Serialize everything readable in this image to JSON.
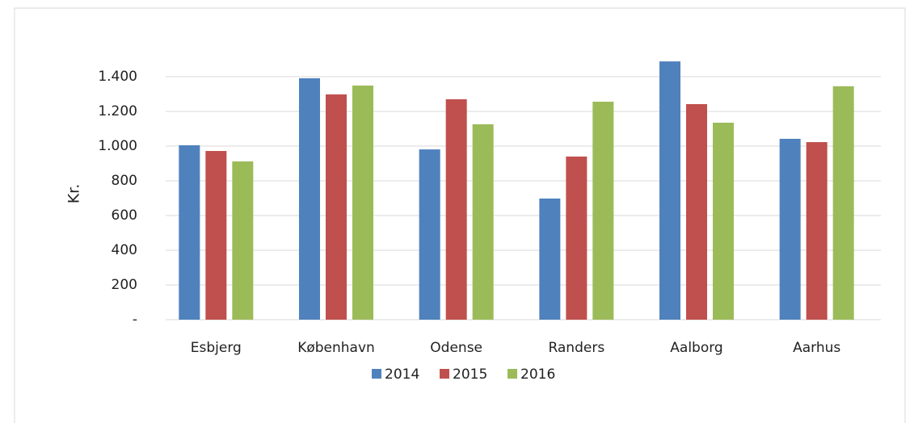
{
  "chart_data": {
    "type": "bar",
    "ylabel": "Kr.",
    "categories": [
      "Esbjerg",
      "København",
      "Odense",
      "Randers",
      "Aalborg",
      "Aarhus"
    ],
    "series": [
      {
        "name": "2014",
        "color": "#4f81bd",
        "values": [
          1005,
          1391,
          981,
          698,
          1488,
          1042
        ]
      },
      {
        "name": "2015",
        "color": "#c0504d",
        "values": [
          972,
          1298,
          1270,
          940,
          1242,
          1023
        ]
      },
      {
        "name": "2016",
        "color": "#9bbb59",
        "values": [
          912,
          1349,
          1126,
          1256,
          1135,
          1345
        ]
      }
    ],
    "ylim": [
      0,
      1600
    ],
    "yticks": [
      {
        "value": 0,
        "label": "-"
      },
      200,
      400,
      600,
      800,
      {
        "value": 1000,
        "label": "1.000"
      },
      {
        "value": 1200,
        "label": "1.200"
      },
      {
        "value": 1400,
        "label": "1.400"
      }
    ],
    "grid": true,
    "legend": "bottom"
  }
}
